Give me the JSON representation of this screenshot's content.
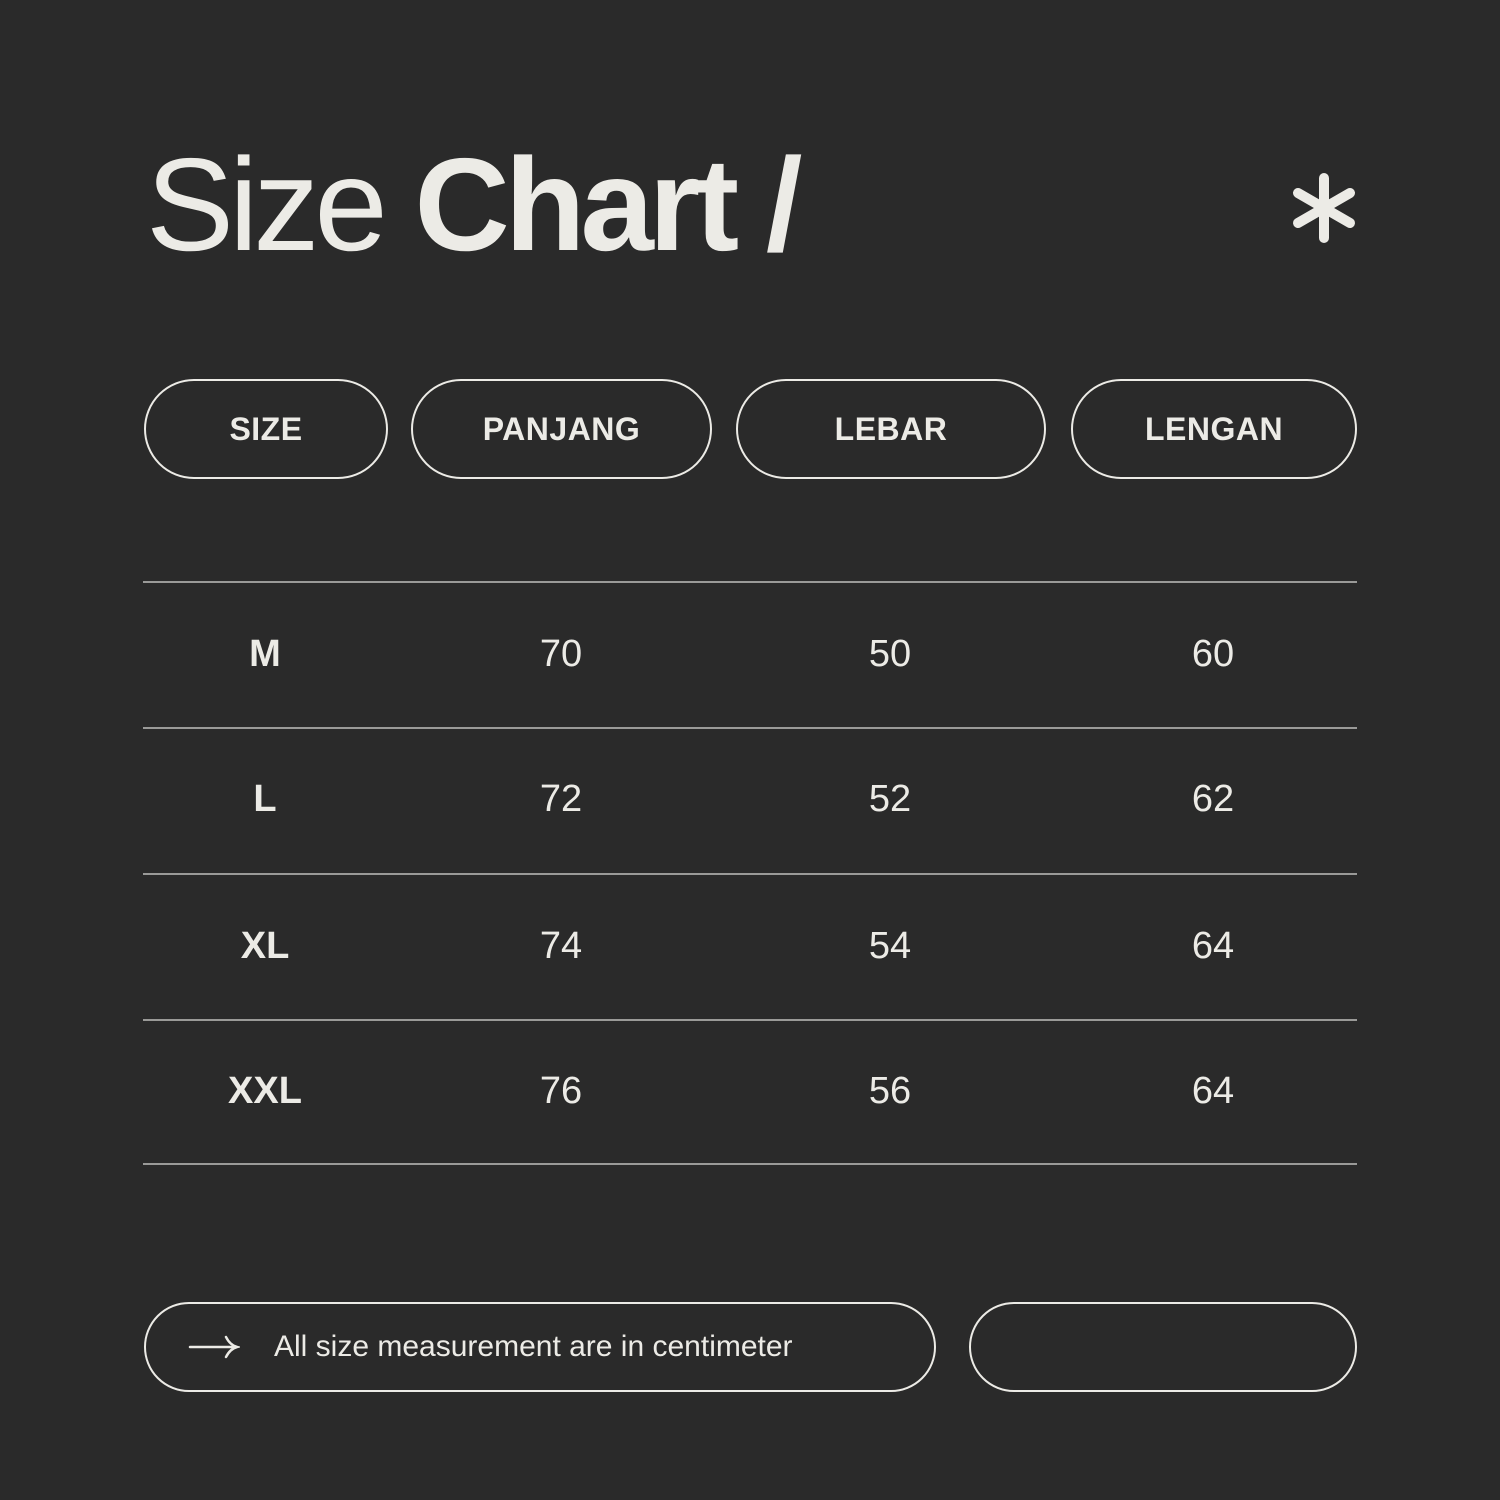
{
  "title": {
    "light": "Size",
    "bold": "Chart /"
  },
  "icons": {
    "decoration": "asterisk-icon",
    "note": "arrow-right-icon"
  },
  "colors": {
    "background": "#2a2a2a",
    "foreground": "#ecebe6",
    "divider": "#9a9a98"
  },
  "table": {
    "headers": [
      "SIZE",
      "PANJANG",
      "LEBAR",
      "LENGAN"
    ],
    "rows": [
      [
        "M",
        "70",
        "50",
        "60"
      ],
      [
        "L",
        "72",
        "52",
        "62"
      ],
      [
        "XL",
        "74",
        "54",
        "64"
      ],
      [
        "XXL",
        "76",
        "56",
        "64"
      ]
    ]
  },
  "footer": {
    "note": "All size measurement are in centimeter",
    "empty_pill": ""
  }
}
